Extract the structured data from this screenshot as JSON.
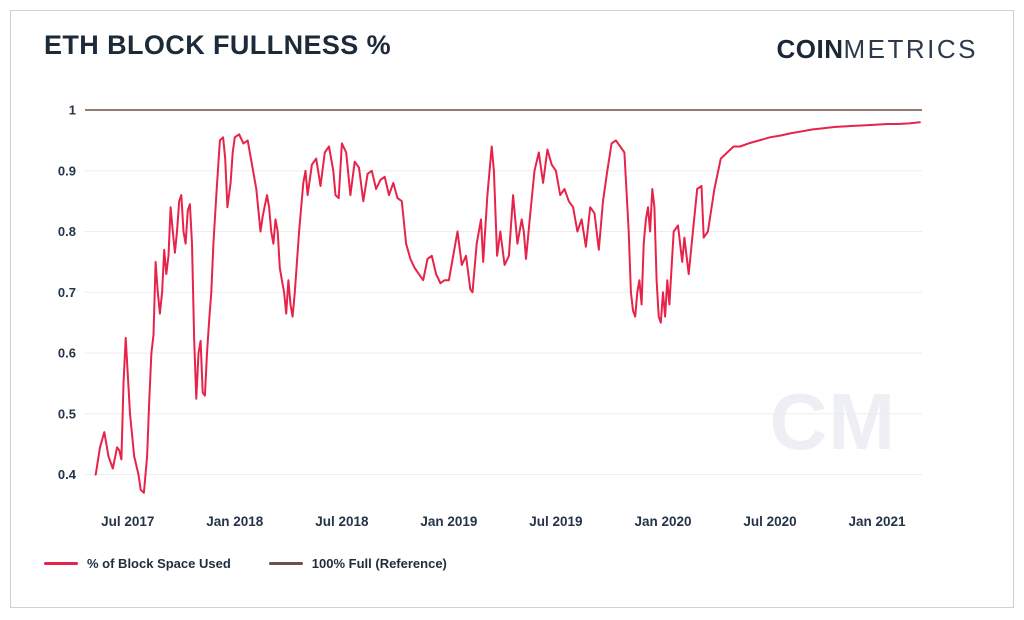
{
  "header": {
    "title": "ETH BLOCK FULLNESS %",
    "logo": {
      "bold": "COIN",
      "light": "METRICS"
    }
  },
  "watermark": "CM",
  "legend": [
    {
      "label": "% of Block Space Used",
      "color": "#e8234a"
    },
    {
      "label": "100% Full (Reference)",
      "color": "#6b5244"
    }
  ],
  "chart_data": {
    "type": "line",
    "title": "ETH BLOCK FULLNESS %",
    "xlabel": "",
    "ylabel": "",
    "grid": "horizontal",
    "legend_position": "bottom-left",
    "xlim": [
      2017.3,
      2021.21
    ],
    "ylim": [
      0.35,
      1.0
    ],
    "x_ticks": [
      {
        "t": 2017.5,
        "label": "Jul 2017"
      },
      {
        "t": 2018.0,
        "label": "Jan 2018"
      },
      {
        "t": 2018.5,
        "label": "Jul 2018"
      },
      {
        "t": 2019.0,
        "label": "Jan 2019"
      },
      {
        "t": 2019.5,
        "label": "Jul 2019"
      },
      {
        "t": 2020.0,
        "label": "Jan 2020"
      },
      {
        "t": 2020.5,
        "label": "Jul 2020"
      },
      {
        "t": 2021.0,
        "label": "Jan 2021"
      }
    ],
    "y_ticks": [
      {
        "v": 1.0,
        "label": "1"
      },
      {
        "v": 0.9,
        "label": "0.9"
      },
      {
        "v": 0.8,
        "label": "0.8"
      },
      {
        "v": 0.7,
        "label": "0.7"
      },
      {
        "v": 0.6,
        "label": "0.6"
      },
      {
        "v": 0.5,
        "label": "0.5"
      },
      {
        "v": 0.4,
        "label": "0.4"
      }
    ],
    "reference_line": {
      "value": 1.0,
      "label": "100% Full (Reference)",
      "color": "#6b5244"
    },
    "series": [
      {
        "name": "% of Block Space Used",
        "color": "#e8234a",
        "points": [
          [
            2017.35,
            0.4
          ],
          [
            2017.37,
            0.445
          ],
          [
            2017.39,
            0.47
          ],
          [
            2017.41,
            0.43
          ],
          [
            2017.43,
            0.41
          ],
          [
            2017.45,
            0.445
          ],
          [
            2017.46,
            0.44
          ],
          [
            2017.47,
            0.425
          ],
          [
            2017.48,
            0.55
          ],
          [
            2017.49,
            0.625
          ],
          [
            2017.51,
            0.5
          ],
          [
            2017.53,
            0.43
          ],
          [
            2017.55,
            0.4
          ],
          [
            2017.56,
            0.375
          ],
          [
            2017.575,
            0.37
          ],
          [
            2017.59,
            0.43
          ],
          [
            2017.6,
            0.52
          ],
          [
            2017.61,
            0.6
          ],
          [
            2017.62,
            0.63
          ],
          [
            2017.63,
            0.75
          ],
          [
            2017.64,
            0.7
          ],
          [
            2017.65,
            0.665
          ],
          [
            2017.66,
            0.7
          ],
          [
            2017.67,
            0.77
          ],
          [
            2017.68,
            0.73
          ],
          [
            2017.69,
            0.76
          ],
          [
            2017.7,
            0.84
          ],
          [
            2017.71,
            0.8
          ],
          [
            2017.72,
            0.765
          ],
          [
            2017.73,
            0.8
          ],
          [
            2017.74,
            0.85
          ],
          [
            2017.75,
            0.86
          ],
          [
            2017.76,
            0.8
          ],
          [
            2017.77,
            0.78
          ],
          [
            2017.78,
            0.835
          ],
          [
            2017.79,
            0.845
          ],
          [
            2017.8,
            0.78
          ],
          [
            2017.81,
            0.62
          ],
          [
            2017.82,
            0.525
          ],
          [
            2017.83,
            0.6
          ],
          [
            2017.84,
            0.62
          ],
          [
            2017.85,
            0.535
          ],
          [
            2017.86,
            0.53
          ],
          [
            2017.87,
            0.6
          ],
          [
            2017.88,
            0.655
          ],
          [
            2017.89,
            0.7
          ],
          [
            2017.9,
            0.78
          ],
          [
            2017.915,
            0.87
          ],
          [
            2017.93,
            0.95
          ],
          [
            2017.945,
            0.955
          ],
          [
            2017.955,
            0.92
          ],
          [
            2017.965,
            0.84
          ],
          [
            2017.98,
            0.88
          ],
          [
            2017.99,
            0.93
          ],
          [
            2018.0,
            0.955
          ],
          [
            2018.02,
            0.96
          ],
          [
            2018.04,
            0.945
          ],
          [
            2018.06,
            0.95
          ],
          [
            2018.08,
            0.91
          ],
          [
            2018.1,
            0.87
          ],
          [
            2018.12,
            0.8
          ],
          [
            2018.13,
            0.825
          ],
          [
            2018.15,
            0.86
          ],
          [
            2018.16,
            0.84
          ],
          [
            2018.17,
            0.8
          ],
          [
            2018.18,
            0.78
          ],
          [
            2018.19,
            0.82
          ],
          [
            2018.2,
            0.8
          ],
          [
            2018.21,
            0.74
          ],
          [
            2018.22,
            0.72
          ],
          [
            2018.23,
            0.7
          ],
          [
            2018.24,
            0.665
          ],
          [
            2018.25,
            0.72
          ],
          [
            2018.26,
            0.68
          ],
          [
            2018.27,
            0.66
          ],
          [
            2018.28,
            0.7
          ],
          [
            2018.3,
            0.8
          ],
          [
            2018.32,
            0.88
          ],
          [
            2018.33,
            0.9
          ],
          [
            2018.34,
            0.86
          ],
          [
            2018.36,
            0.91
          ],
          [
            2018.38,
            0.92
          ],
          [
            2018.4,
            0.875
          ],
          [
            2018.42,
            0.93
          ],
          [
            2018.44,
            0.94
          ],
          [
            2018.46,
            0.9
          ],
          [
            2018.47,
            0.86
          ],
          [
            2018.485,
            0.855
          ],
          [
            2018.5,
            0.945
          ],
          [
            2018.52,
            0.93
          ],
          [
            2018.54,
            0.86
          ],
          [
            2018.56,
            0.915
          ],
          [
            2018.58,
            0.905
          ],
          [
            2018.6,
            0.85
          ],
          [
            2018.62,
            0.895
          ],
          [
            2018.64,
            0.9
          ],
          [
            2018.66,
            0.87
          ],
          [
            2018.68,
            0.885
          ],
          [
            2018.7,
            0.89
          ],
          [
            2018.72,
            0.86
          ],
          [
            2018.74,
            0.88
          ],
          [
            2018.76,
            0.855
          ],
          [
            2018.78,
            0.85
          ],
          [
            2018.8,
            0.78
          ],
          [
            2018.82,
            0.755
          ],
          [
            2018.84,
            0.74
          ],
          [
            2018.86,
            0.73
          ],
          [
            2018.88,
            0.72
          ],
          [
            2018.9,
            0.755
          ],
          [
            2018.92,
            0.76
          ],
          [
            2018.94,
            0.73
          ],
          [
            2018.96,
            0.715
          ],
          [
            2018.98,
            0.72
          ],
          [
            2019.0,
            0.72
          ],
          [
            2019.02,
            0.76
          ],
          [
            2019.04,
            0.8
          ],
          [
            2019.06,
            0.745
          ],
          [
            2019.08,
            0.76
          ],
          [
            2019.1,
            0.705
          ],
          [
            2019.11,
            0.7
          ],
          [
            2019.13,
            0.78
          ],
          [
            2019.15,
            0.82
          ],
          [
            2019.16,
            0.75
          ],
          [
            2019.18,
            0.86
          ],
          [
            2019.2,
            0.94
          ],
          [
            2019.21,
            0.9
          ],
          [
            2019.225,
            0.76
          ],
          [
            2019.24,
            0.8
          ],
          [
            2019.26,
            0.745
          ],
          [
            2019.28,
            0.76
          ],
          [
            2019.3,
            0.86
          ],
          [
            2019.32,
            0.78
          ],
          [
            2019.34,
            0.82
          ],
          [
            2019.35,
            0.8
          ],
          [
            2019.36,
            0.755
          ],
          [
            2019.38,
            0.83
          ],
          [
            2019.4,
            0.9
          ],
          [
            2019.42,
            0.93
          ],
          [
            2019.44,
            0.88
          ],
          [
            2019.46,
            0.935
          ],
          [
            2019.48,
            0.91
          ],
          [
            2019.5,
            0.9
          ],
          [
            2019.52,
            0.86
          ],
          [
            2019.54,
            0.87
          ],
          [
            2019.56,
            0.85
          ],
          [
            2019.58,
            0.84
          ],
          [
            2019.6,
            0.8
          ],
          [
            2019.62,
            0.82
          ],
          [
            2019.64,
            0.775
          ],
          [
            2019.66,
            0.84
          ],
          [
            2019.68,
            0.83
          ],
          [
            2019.7,
            0.77
          ],
          [
            2019.72,
            0.85
          ],
          [
            2019.74,
            0.9
          ],
          [
            2019.76,
            0.945
          ],
          [
            2019.78,
            0.95
          ],
          [
            2019.8,
            0.94
          ],
          [
            2019.82,
            0.93
          ],
          [
            2019.84,
            0.8
          ],
          [
            2019.85,
            0.7
          ],
          [
            2019.86,
            0.67
          ],
          [
            2019.87,
            0.66
          ],
          [
            2019.88,
            0.7
          ],
          [
            2019.89,
            0.72
          ],
          [
            2019.9,
            0.68
          ],
          [
            2019.91,
            0.78
          ],
          [
            2019.92,
            0.82
          ],
          [
            2019.93,
            0.84
          ],
          [
            2019.94,
            0.8
          ],
          [
            2019.95,
            0.87
          ],
          [
            2019.96,
            0.84
          ],
          [
            2019.97,
            0.72
          ],
          [
            2019.98,
            0.66
          ],
          [
            2019.99,
            0.65
          ],
          [
            2020.0,
            0.7
          ],
          [
            2020.01,
            0.66
          ],
          [
            2020.02,
            0.72
          ],
          [
            2020.03,
            0.68
          ],
          [
            2020.05,
            0.8
          ],
          [
            2020.07,
            0.81
          ],
          [
            2020.09,
            0.75
          ],
          [
            2020.1,
            0.79
          ],
          [
            2020.12,
            0.73
          ],
          [
            2020.14,
            0.8
          ],
          [
            2020.16,
            0.87
          ],
          [
            2020.18,
            0.875
          ],
          [
            2020.19,
            0.79
          ],
          [
            2020.21,
            0.8
          ],
          [
            2020.24,
            0.87
          ],
          [
            2020.27,
            0.92
          ],
          [
            2020.3,
            0.93
          ],
          [
            2020.33,
            0.94
          ],
          [
            2020.36,
            0.94
          ],
          [
            2020.4,
            0.945
          ],
          [
            2020.45,
            0.95
          ],
          [
            2020.5,
            0.955
          ],
          [
            2020.55,
            0.958
          ],
          [
            2020.6,
            0.962
          ],
          [
            2020.65,
            0.965
          ],
          [
            2020.7,
            0.968
          ],
          [
            2020.75,
            0.97
          ],
          [
            2020.8,
            0.972
          ],
          [
            2020.85,
            0.973
          ],
          [
            2020.9,
            0.974
          ],
          [
            2020.95,
            0.975
          ],
          [
            2021.0,
            0.976
          ],
          [
            2021.05,
            0.977
          ],
          [
            2021.1,
            0.977
          ],
          [
            2021.15,
            0.978
          ],
          [
            2021.2,
            0.98
          ]
        ]
      }
    ]
  }
}
